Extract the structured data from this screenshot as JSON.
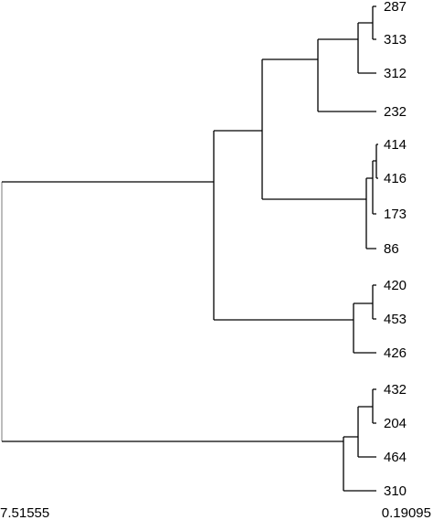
{
  "dendrogram": {
    "leaves": [
      "287",
      "313",
      "312",
      "232",
      "414",
      "416",
      "173",
      "86",
      "420",
      "453",
      "426",
      "432",
      "204",
      "464",
      "310"
    ],
    "scale": {
      "left_label": "7.51555",
      "right_label": "0.19095"
    }
  }
}
